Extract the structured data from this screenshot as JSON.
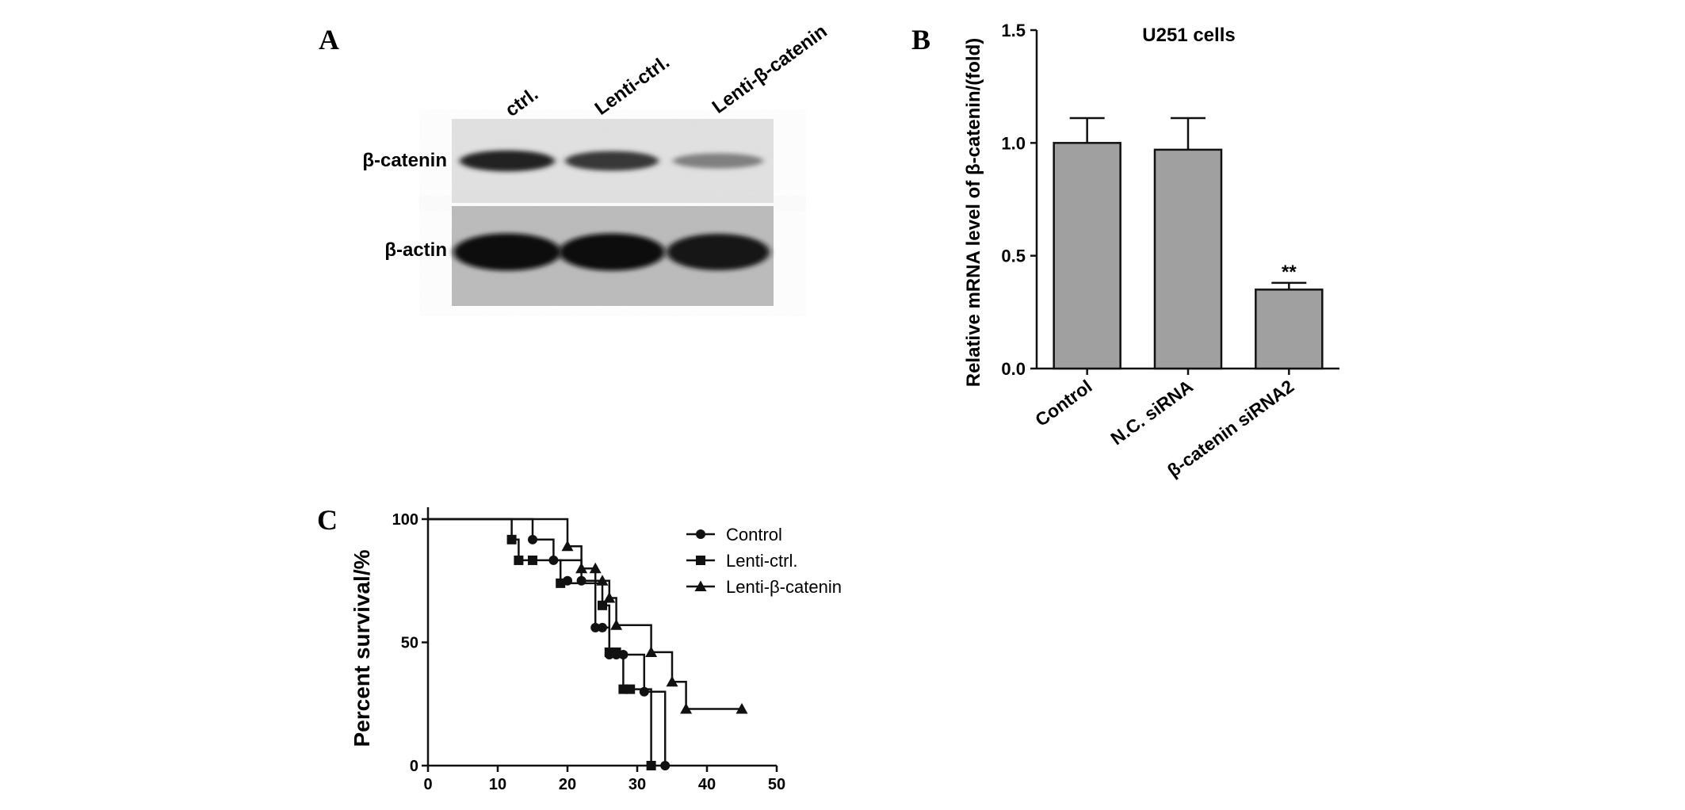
{
  "panel_a": {
    "letter": "A",
    "lane_labels": [
      "ctrl.",
      "Lenti-ctrl.",
      "Lenti-β-catenin"
    ],
    "row_labels": [
      "β-catenin",
      "β-actin"
    ],
    "band_intensity": {
      "beta_catenin": [
        0.9,
        0.8,
        0.45
      ],
      "beta_actin": [
        0.95,
        0.95,
        0.9
      ]
    }
  },
  "chart_data": [
    {
      "panel": "B",
      "type": "bar",
      "title": "U251 cells",
      "categories": [
        "Control",
        "N.C. siRNA",
        "β-catenin siRNA2"
      ],
      "values": [
        1.0,
        0.97,
        0.35
      ],
      "errors": [
        0.11,
        0.14,
        0.03
      ],
      "annotations": [
        "",
        "",
        "**"
      ],
      "xlabel": "",
      "ylabel": "Relative mRNA level of β-catenin/(fold)",
      "ylim": [
        0,
        1.5
      ],
      "yticks": [
        "0.0",
        "0.5",
        "1.0",
        "1.5"
      ],
      "bar_color": "#a0a0a0",
      "grid": false
    },
    {
      "panel": "C",
      "type": "line",
      "title": "",
      "xlabel": "",
      "ylabel": "Percent survival/%",
      "xlim": [
        0,
        50
      ],
      "ylim": [
        0,
        100
      ],
      "xticks": [
        "0",
        "10",
        "20",
        "30",
        "40",
        "50"
      ],
      "yticks": [
        "0",
        "50",
        "100"
      ],
      "legend_position": "top-right",
      "grid": false,
      "series": [
        {
          "name": "Control",
          "marker": "circle",
          "steps": [
            [
              0,
              100
            ],
            [
              15,
              100
            ],
            [
              15,
              91.7
            ],
            [
              18,
              91.7
            ],
            [
              18,
              83.3
            ],
            [
              22,
              83.3
            ],
            [
              22,
              75
            ],
            [
              24,
              75
            ],
            [
              24,
              56
            ],
            [
              25,
              56
            ],
            [
              25,
              56
            ],
            [
              26,
              56
            ],
            [
              26,
              45
            ],
            [
              28,
              45
            ],
            [
              28,
              45
            ],
            [
              31,
              45
            ],
            [
              31,
              30
            ],
            [
              34,
              30
            ],
            [
              34,
              0
            ]
          ],
          "markers": [
            [
              15,
              91.7
            ],
            [
              18,
              83.3
            ],
            [
              20,
              75
            ],
            [
              22,
              75
            ],
            [
              24,
              56
            ],
            [
              25,
              56
            ],
            [
              26,
              45
            ],
            [
              27,
              45
            ],
            [
              28,
              45
            ],
            [
              31,
              30
            ],
            [
              34,
              0
            ]
          ]
        },
        {
          "name": "Lenti-ctrl.",
          "marker": "square",
          "steps": [
            [
              0,
              100
            ],
            [
              12,
              100
            ],
            [
              12,
              91.7
            ],
            [
              13,
              91.7
            ],
            [
              13,
              83.3
            ],
            [
              19,
              83.3
            ],
            [
              19,
              74
            ],
            [
              25,
              74
            ],
            [
              25,
              65
            ],
            [
              26,
              65
            ],
            [
              26,
              46
            ],
            [
              28,
              46
            ],
            [
              28,
              31
            ],
            [
              32,
              31
            ],
            [
              32,
              0
            ]
          ],
          "markers": [
            [
              12,
              91.7
            ],
            [
              13,
              83.3
            ],
            [
              15,
              83.3
            ],
            [
              19,
              74
            ],
            [
              25,
              65
            ],
            [
              26,
              46
            ],
            [
              27,
              46
            ],
            [
              28,
              31
            ],
            [
              29,
              31
            ],
            [
              32,
              0
            ]
          ]
        },
        {
          "name": "Lenti-β-catenin",
          "marker": "triangle",
          "steps": [
            [
              0,
              100
            ],
            [
              20,
              100
            ],
            [
              20,
              89
            ],
            [
              22,
              89
            ],
            [
              22,
              80
            ],
            [
              24,
              80
            ],
            [
              24,
              75
            ],
            [
              26,
              75
            ],
            [
              26,
              68
            ],
            [
              27,
              68
            ],
            [
              27,
              57
            ],
            [
              32,
              57
            ],
            [
              32,
              46
            ],
            [
              35,
              46
            ],
            [
              35,
              34
            ],
            [
              37,
              34
            ],
            [
              37,
              23
            ],
            [
              45,
              23
            ]
          ],
          "markers": [
            [
              20,
              89
            ],
            [
              22,
              80
            ],
            [
              24,
              80
            ],
            [
              25,
              75
            ],
            [
              26,
              68
            ],
            [
              27,
              57
            ],
            [
              32,
              46
            ],
            [
              35,
              34
            ],
            [
              37,
              23
            ],
            [
              45,
              23
            ]
          ]
        }
      ]
    }
  ],
  "panel_letters": {
    "b": "B",
    "c": "C"
  }
}
